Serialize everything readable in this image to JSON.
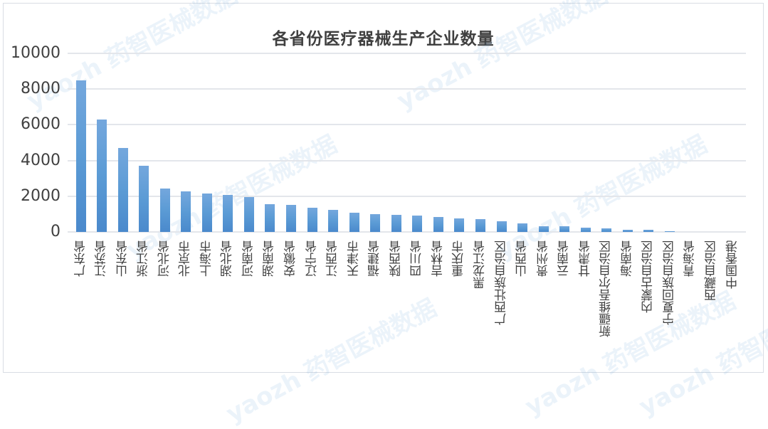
{
  "chart_data": {
    "type": "bar",
    "title": "各省份医疗器械生产企业数量",
    "xlabel": "",
    "ylabel": "",
    "ylim": [
      0,
      10000
    ],
    "yticks": [
      0,
      2000,
      4000,
      6000,
      8000,
      10000
    ],
    "grid": true,
    "legend": null,
    "categories": [
      "广东省",
      "江苏省",
      "山东省",
      "浙江省",
      "河北省",
      "北京市",
      "上海市",
      "湖北省",
      "河南省",
      "湖南省",
      "安徽省",
      "辽宁省",
      "江西省",
      "天津市",
      "福建省",
      "陕西省",
      "四川省",
      "吉林省",
      "重庆市",
      "黑龙江省",
      "广西壮族自治区",
      "山西省",
      "贵州省",
      "云南省",
      "甘肃省",
      "新疆维吾尔自治区",
      "海南省",
      "内蒙古自治区",
      "宁夏回族自治区",
      "青海省",
      "西藏自治区",
      "中国香港"
    ],
    "values": [
      8480,
      6290,
      4700,
      3700,
      2430,
      2280,
      2150,
      2080,
      1950,
      1550,
      1530,
      1340,
      1240,
      1090,
      1000,
      950,
      920,
      840,
      760,
      720,
      600,
      460,
      320,
      300,
      220,
      180,
      140,
      120,
      60,
      10,
      5,
      2
    ],
    "bar_color": "#5b9bd5"
  },
  "watermark": "yaozh 药智医械数据",
  "y_axis": {
    "labels": [
      "10000",
      "8000",
      "6000",
      "4000",
      "2000",
      "0"
    ]
  }
}
